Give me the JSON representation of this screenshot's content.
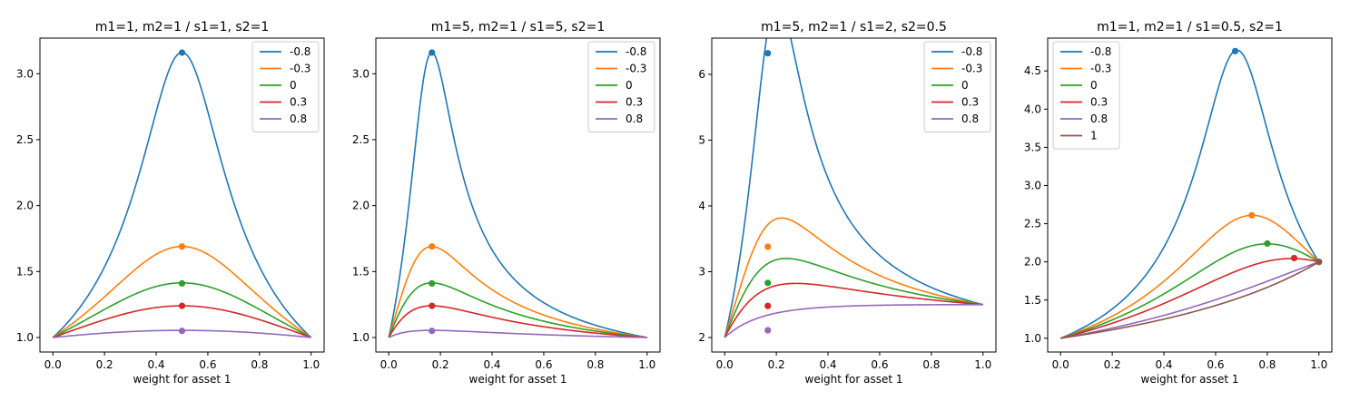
{
  "colors": {
    "blue": "#1f77b4",
    "orange": "#ff7f0e",
    "green": "#2ca02c",
    "red": "#d62728",
    "purple": "#9467bd",
    "brown": "#8c564b"
  },
  "chart_data": [
    {
      "type": "line",
      "title": "m1=1, m2=1 / s1=1, s2=1",
      "xlabel": "weight for asset 1",
      "ylabel": "",
      "xlim": [
        -0.05,
        1.05
      ],
      "ylim": [
        0.89,
        3.27
      ],
      "xticks": [
        "0.0",
        "0.2",
        "0.4",
        "0.6",
        "0.8",
        "1.0"
      ],
      "yticks": [
        "1.0",
        "1.5",
        "2.0",
        "2.5",
        "3.0"
      ],
      "legend_position": "top-right",
      "params": {
        "m1": 1,
        "m2": 1,
        "s1": 1,
        "s2": 1
      },
      "series": [
        {
          "name": "-0.8",
          "color": "#1f77b4",
          "rho": -0.8,
          "max_point": [
            0.5,
            3.16
          ]
        },
        {
          "name": "-0.3",
          "color": "#ff7f0e",
          "rho": -0.3,
          "max_point": [
            0.5,
            1.69
          ]
        },
        {
          "name": "0",
          "color": "#2ca02c",
          "rho": 0,
          "max_point": [
            0.5,
            1.41
          ]
        },
        {
          "name": "0.3",
          "color": "#d62728",
          "rho": 0.3,
          "max_point": [
            0.5,
            1.24
          ]
        },
        {
          "name": "0.8",
          "color": "#9467bd",
          "rho": 0.8,
          "max_point": [
            0.5,
            1.05
          ]
        }
      ]
    },
    {
      "type": "line",
      "title": "m1=5, m2=1 / s1=5, s2=1",
      "xlabel": "weight for asset 1",
      "ylabel": "",
      "xlim": [
        -0.05,
        1.05
      ],
      "ylim": [
        0.89,
        3.27
      ],
      "xticks": [
        "0.0",
        "0.2",
        "0.4",
        "0.6",
        "0.8",
        "1.0"
      ],
      "yticks": [
        "1.0",
        "1.5",
        "2.0",
        "2.5",
        "3.0"
      ],
      "legend_position": "top-right",
      "params": {
        "m1": 5,
        "m2": 1,
        "s1": 5,
        "s2": 1
      },
      "series": [
        {
          "name": "-0.8",
          "color": "#1f77b4",
          "rho": -0.8,
          "max_point": [
            0.167,
            3.16
          ]
        },
        {
          "name": "-0.3",
          "color": "#ff7f0e",
          "rho": -0.3,
          "max_point": [
            0.167,
            1.69
          ]
        },
        {
          "name": "0",
          "color": "#2ca02c",
          "rho": 0,
          "max_point": [
            0.167,
            1.41
          ]
        },
        {
          "name": "0.3",
          "color": "#d62728",
          "rho": 0.3,
          "max_point": [
            0.167,
            1.24
          ]
        },
        {
          "name": "0.8",
          "color": "#9467bd",
          "rho": 0.8,
          "max_point": [
            0.167,
            1.05
          ]
        }
      ]
    },
    {
      "type": "line",
      "title": "m1=5, m2=1 / s1=2, s2=0.5",
      "xlabel": "weight for asset 1",
      "ylabel": "",
      "xlim": [
        -0.05,
        1.05
      ],
      "ylim": [
        1.78,
        6.55
      ],
      "xticks": [
        "0.0",
        "0.2",
        "0.4",
        "0.6",
        "0.8",
        "1.0"
      ],
      "yticks": [
        "2",
        "3",
        "4",
        "5",
        "6"
      ],
      "legend_position": "top-right",
      "params": {
        "m1": 5,
        "m2": 1,
        "s1": 2,
        "s2": 0.5
      },
      "series": [
        {
          "name": "-0.8",
          "color": "#1f77b4",
          "rho": -0.8,
          "max_point": [
            0.167,
            6.32
          ]
        },
        {
          "name": "-0.3",
          "color": "#ff7f0e",
          "rho": -0.3,
          "max_point": [
            0.167,
            3.38
          ]
        },
        {
          "name": "0",
          "color": "#2ca02c",
          "rho": 0,
          "max_point": [
            0.167,
            2.83
          ]
        },
        {
          "name": "0.3",
          "color": "#d62728",
          "rho": 0.3,
          "max_point": [
            0.167,
            2.48
          ]
        },
        {
          "name": "0.8",
          "color": "#9467bd",
          "rho": 0.8,
          "max_point": [
            0.167,
            2.11
          ]
        }
      ]
    },
    {
      "type": "line",
      "title": "m1=1, m2=1 / s1=0.5, s2=1",
      "xlabel": "weight for asset 1",
      "ylabel": "",
      "xlim": [
        -0.05,
        1.05
      ],
      "ylim": [
        0.82,
        4.93
      ],
      "xticks": [
        "0.0",
        "0.2",
        "0.4",
        "0.6",
        "0.8",
        "1.0"
      ],
      "yticks": [
        "1.0",
        "1.5",
        "2.0",
        "2.5",
        "3.0",
        "3.5",
        "4.0",
        "4.5"
      ],
      "legend_position": "top-left",
      "params": {
        "m1": 1,
        "m2": 1,
        "s1": 0.5,
        "s2": 1
      },
      "series": [
        {
          "name": "-0.8",
          "color": "#1f77b4",
          "rho": -0.8,
          "max_point": [
            0.676,
            4.76
          ]
        },
        {
          "name": "-0.3",
          "color": "#ff7f0e",
          "rho": -0.3,
          "max_point": [
            0.74,
            2.61
          ]
        },
        {
          "name": "0",
          "color": "#2ca02c",
          "rho": 0,
          "max_point": [
            0.8,
            2.24
          ]
        },
        {
          "name": "0.3",
          "color": "#d62728",
          "rho": 0.3,
          "max_point": [
            0.904,
            2.05
          ]
        },
        {
          "name": "0.8",
          "color": "#9467bd",
          "rho": 0.8,
          "max_point": [
            1.0,
            2.0
          ]
        },
        {
          "name": "1",
          "color": "#8c564b",
          "rho": 1,
          "max_point": [
            1.0,
            2.0
          ]
        }
      ]
    }
  ]
}
